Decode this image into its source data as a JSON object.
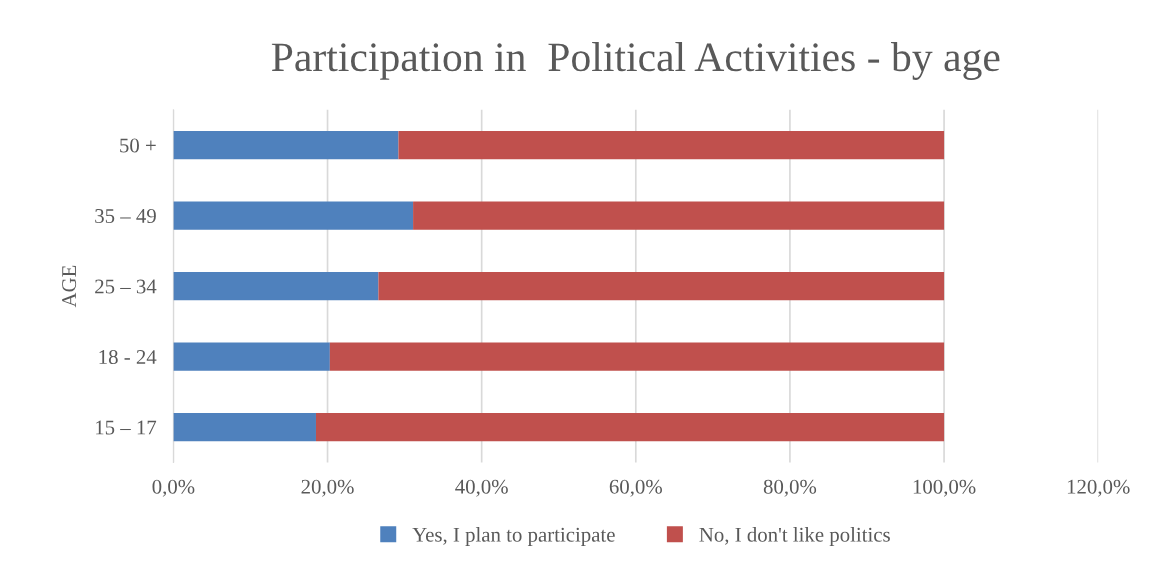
{
  "chart_data": {
    "type": "bar",
    "orientation": "horizontal",
    "stacked": true,
    "title": "Participation in  Political Activities - by age",
    "ylabel": "AGE",
    "categories": [
      "50 +",
      "35 – 49",
      "25 – 34",
      "18 - 24",
      "15 – 17"
    ],
    "series": [
      {
        "name": "Yes, I plan to participate",
        "color": "#4f81bd",
        "values": [
          29.2,
          31.1,
          26.6,
          20.3,
          18.5
        ]
      },
      {
        "name": "No, I don't like politics",
        "color": "#c0504d",
        "values": [
          70.8,
          68.9,
          73.4,
          79.7,
          81.5
        ]
      }
    ],
    "xlim": [
      0,
      120
    ],
    "xticks": [
      {
        "value": 0,
        "label": "0,0%"
      },
      {
        "value": 20,
        "label": "20,0%"
      },
      {
        "value": 40,
        "label": "40,0%"
      },
      {
        "value": 60,
        "label": "60,0%"
      },
      {
        "value": 80,
        "label": "80,0%"
      },
      {
        "value": 100,
        "label": "100,0%"
      },
      {
        "value": 120,
        "label": "120,0%"
      }
    ],
    "grid": "x",
    "legend": "bottom"
  }
}
